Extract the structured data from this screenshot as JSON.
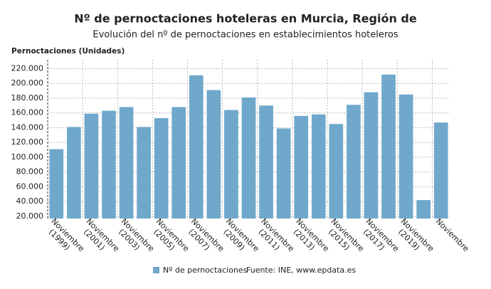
{
  "chart_data": {
    "type": "bar",
    "title": "Nº de pernoctaciones hoteleras en Murcia, Región de",
    "subtitle": "Evolución del nº de pernoctaciones en establecimientos hoteleros",
    "y_label": "Pernoctaciones (Unidades)",
    "source": "Fuente: INE, www.epdata.es",
    "categories": [
      "Noviembre (1999)",
      null,
      "Noviembre (2001)",
      null,
      "Noviembre (2003)",
      null,
      "Noviembre (2005)",
      null,
      "Noviembre (2007)",
      null,
      "Noviembre (2009)",
      null,
      "Noviembre (2011)",
      null,
      "Noviembre (2013)",
      null,
      "Noviembre (2015)",
      null,
      "Noviembre (2017)",
      null,
      "Noviembre (2019)",
      null,
      "Noviembre"
    ],
    "series": [
      {
        "name": "Nº de pernoctaciones",
        "color": "#6fa8cb",
        "values": [
          111000,
          141000,
          159000,
          163000,
          168000,
          141000,
          153000,
          168000,
          211000,
          191000,
          164000,
          181000,
          170000,
          139000,
          156000,
          158000,
          145000,
          171000,
          188000,
          212000,
          185000,
          42000,
          147000
        ]
      }
    ],
    "ylim": [
      17000,
      232000
    ],
    "yticks": [
      {
        "value": 20000,
        "label": "20.000"
      },
      {
        "value": 40000,
        "label": "40.000"
      },
      {
        "value": 60000,
        "label": "60.000"
      },
      {
        "value": 80000,
        "label": "80.000"
      },
      {
        "value": 100000,
        "label": "100.000"
      },
      {
        "value": 120000,
        "label": "120.000"
      },
      {
        "value": 140000,
        "label": "140.000"
      },
      {
        "value": 160000,
        "label": "160.000"
      },
      {
        "value": 180000,
        "label": "180.000"
      },
      {
        "value": 200000,
        "label": "200.000"
      },
      {
        "value": 220000,
        "label": "220.000"
      }
    ],
    "grid": true
  }
}
